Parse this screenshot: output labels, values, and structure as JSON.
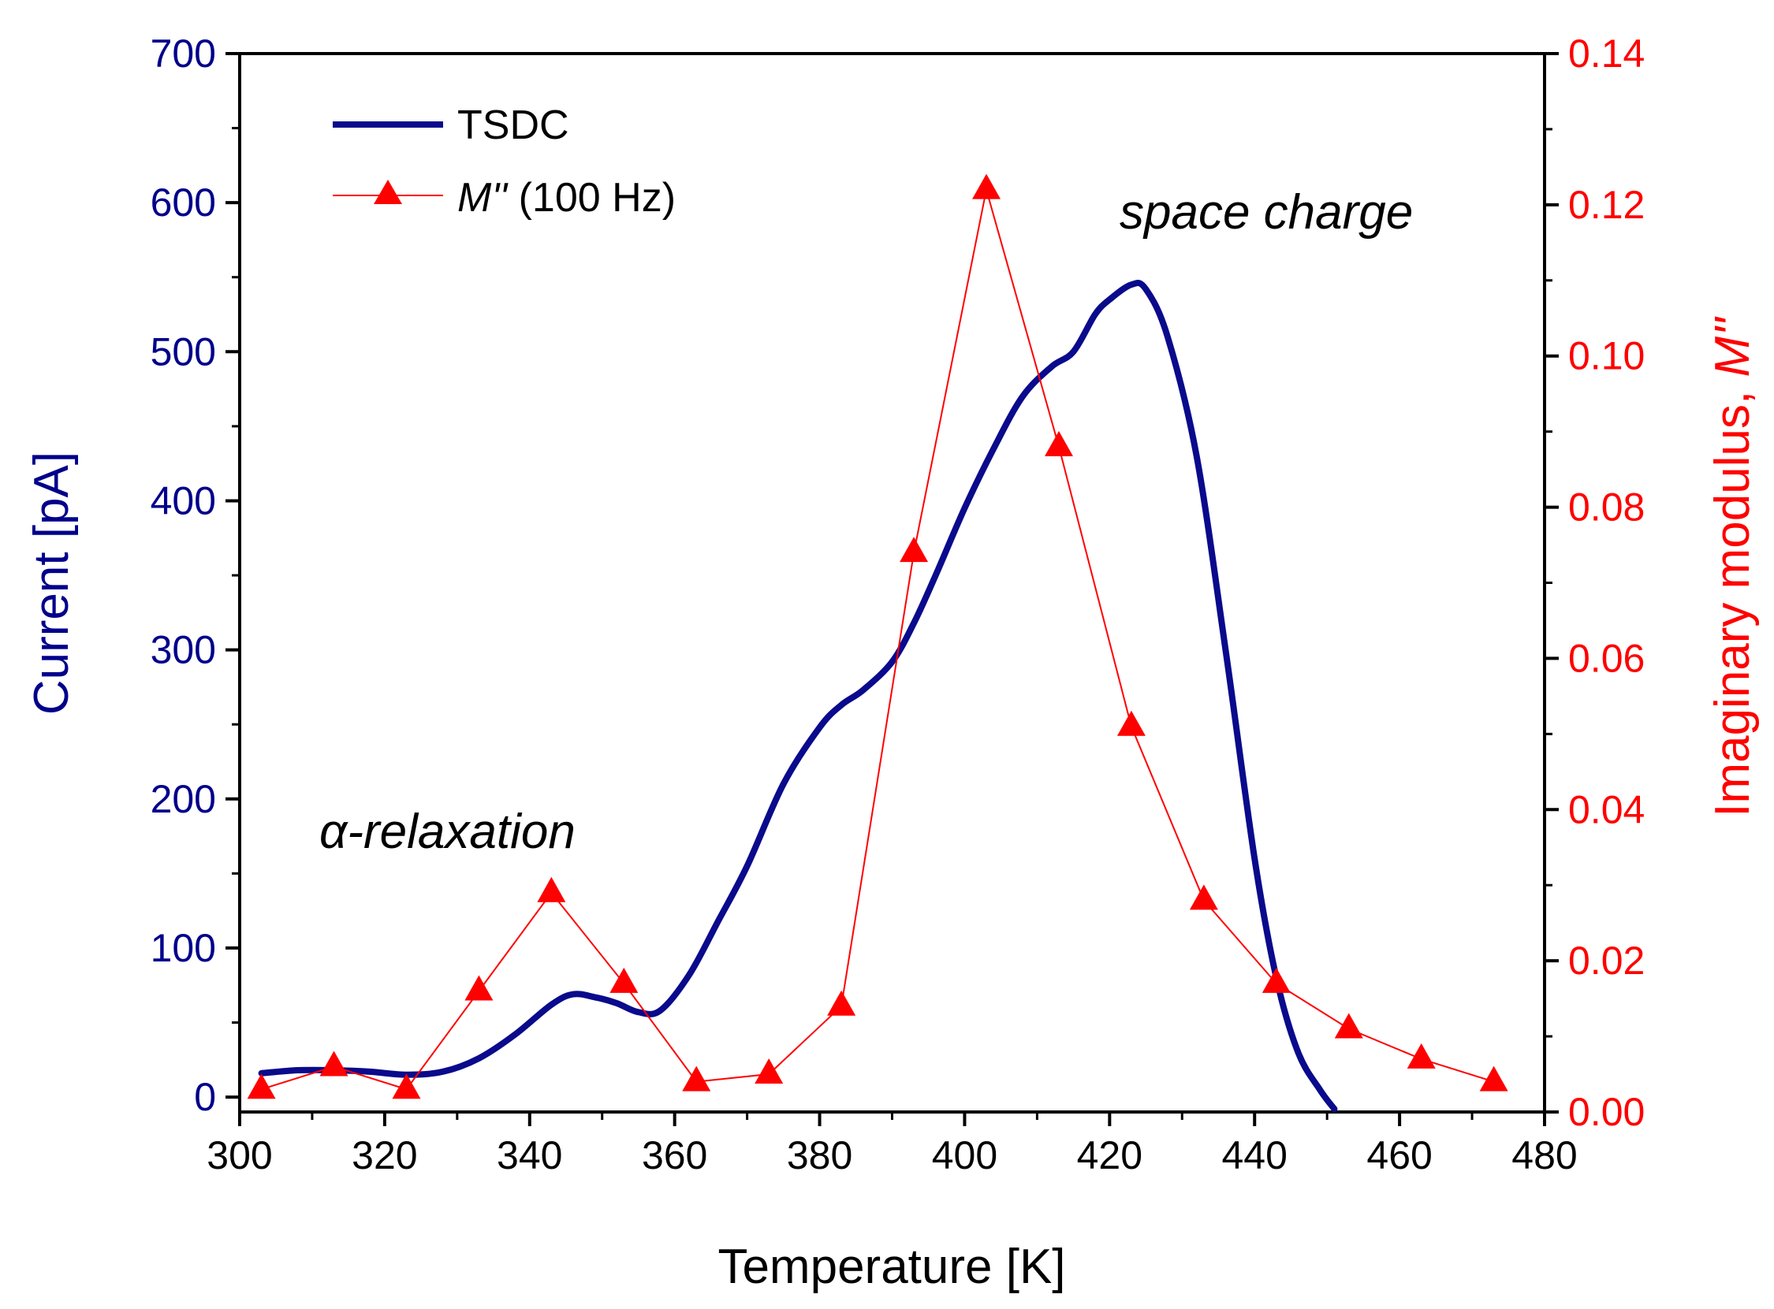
{
  "chart_data": {
    "type": "line",
    "xlabel": "Temperature [K]",
    "ylabel_left": "Current [pA]",
    "ylabel_right_prefix": "Imaginary modulus, ",
    "ylabel_right_symbol": "M''",
    "xlim": [
      300,
      480
    ],
    "xticks": [
      300,
      320,
      340,
      360,
      380,
      400,
      420,
      440,
      460,
      480
    ],
    "ylim_left": [
      -10,
      700
    ],
    "yticks_left": [
      0,
      100,
      200,
      300,
      400,
      500,
      600,
      700
    ],
    "ylim_right": [
      0,
      0.14
    ],
    "yticks_right": [
      "0.00",
      "0.02",
      "0.04",
      "0.06",
      "0.08",
      "0.10",
      "0.12",
      "0.14"
    ],
    "colors": {
      "left_axis": "#00008b",
      "right_axis": "#ff0000",
      "tsdc": "#0a0a8c",
      "modulus": "#ff0000"
    },
    "legend": {
      "position": "top-left",
      "tsdc_label": "TSDC",
      "modulus_symbol": "M''",
      "modulus_suffix": " (100 Hz)"
    },
    "annotations": {
      "alpha": "α-relaxation",
      "space_charge": "space charge"
    },
    "series": [
      {
        "name": "TSDC",
        "axis": "left",
        "x": [
          303,
          308,
          313,
          318,
          323,
          328,
          333,
          338,
          343,
          346,
          349,
          352,
          355,
          358,
          362,
          366,
          370,
          375,
          380,
          383,
          386,
          390,
          393,
          396,
          400,
          404,
          408,
          412,
          415,
          418,
          420,
          423,
          425,
          428,
          432,
          436,
          440,
          443,
          446,
          449,
          451
        ],
        "y": [
          16,
          18,
          18,
          17,
          15,
          17,
          26,
          42,
          62,
          69,
          67,
          63,
          57,
          58,
          82,
          118,
          155,
          210,
          248,
          263,
          273,
          292,
          318,
          350,
          395,
          435,
          470,
          490,
          500,
          525,
          535,
          545,
          542,
          510,
          430,
          300,
          160,
          80,
          30,
          5,
          -8
        ]
      },
      {
        "name": "M'' (100 Hz)",
        "axis": "right",
        "x": [
          303,
          313,
          323,
          333,
          343,
          353,
          363,
          373,
          383,
          393,
          403,
          413,
          423,
          433,
          443,
          453,
          463,
          473
        ],
        "y": [
          0.003,
          0.006,
          0.003,
          0.016,
          0.029,
          0.017,
          0.004,
          0.005,
          0.014,
          0.074,
          0.122,
          0.088,
          0.051,
          0.028,
          0.017,
          0.011,
          0.007,
          0.004
        ]
      }
    ]
  }
}
